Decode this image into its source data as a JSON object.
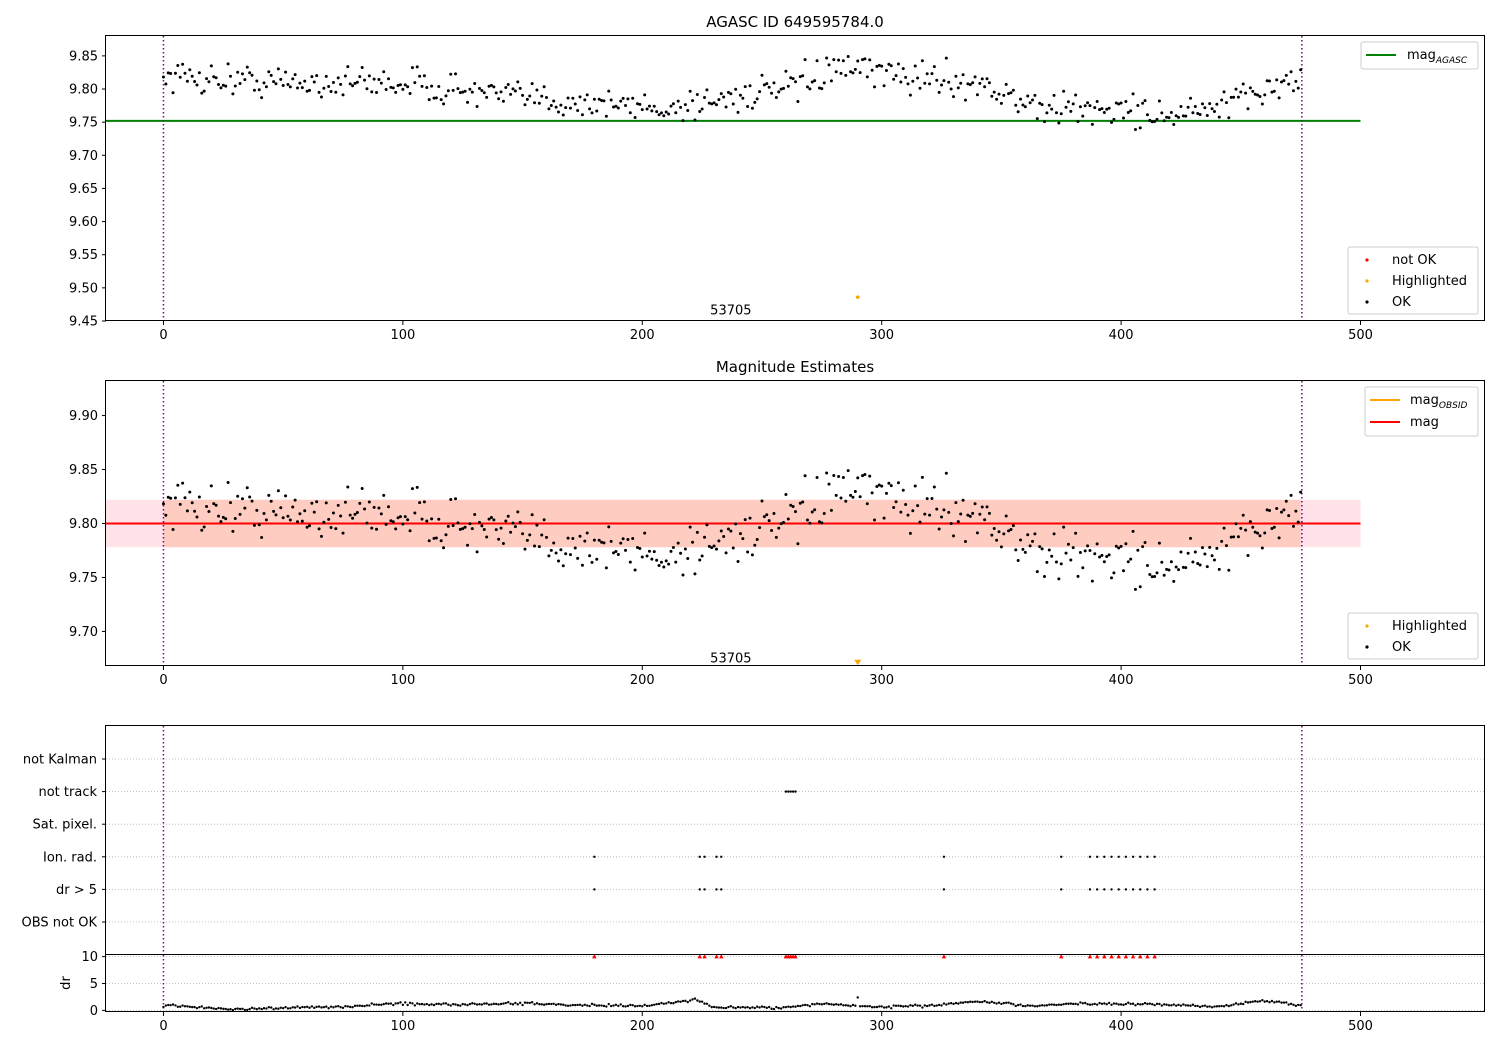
{
  "colors": {
    "ok": "#000000",
    "not_ok": "#ff0000",
    "highlighted": "#ffa500",
    "mag_agasc": "#008000",
    "mag_obsid": "#ffa500",
    "mag": "#ff0000",
    "band_outer": "#ffc0cb",
    "band_inner": "#ffa07a",
    "vline": "#800080",
    "grid": "#b0b0b0"
  },
  "chart_data": [
    {
      "type": "scatter",
      "title": "AGASC ID 649595784.0",
      "xlim": [
        -24,
        552
      ],
      "ylim": [
        9.45,
        9.88
      ],
      "xticks": [
        0,
        100,
        200,
        300,
        400,
        500
      ],
      "xtick_labels": [
        "0",
        "100",
        "200",
        "300",
        "400",
        "500"
      ],
      "yticks": [
        9.45,
        9.5,
        9.55,
        9.6,
        9.65,
        9.7,
        9.75,
        9.8,
        9.85
      ],
      "ytick_labels": [
        "9.45",
        "9.50",
        "9.55",
        "9.60",
        "9.65",
        "9.70",
        "9.75",
        "9.80",
        "9.85"
      ],
      "hlines": [
        {
          "name": "mag_AGASC",
          "y": 9.752,
          "x": [
            -24,
            500
          ],
          "color": "#008000"
        }
      ],
      "vlines": [
        0,
        475.5
      ],
      "highlighted_points": [
        {
          "x": 290,
          "y": 9.486
        }
      ],
      "obsid_annotation": {
        "text": "53705",
        "x": 237,
        "y": 9.466
      },
      "ok_series_description": "~476 black points, index 0-475",
      "ok_anchor_values": [
        [
          0,
          9.82
        ],
        [
          50,
          9.81
        ],
        [
          100,
          9.81
        ],
        [
          140,
          9.79
        ],
        [
          175,
          9.78
        ],
        [
          210,
          9.77
        ],
        [
          240,
          9.79
        ],
        [
          262,
          9.8
        ],
        [
          280,
          9.83
        ],
        [
          310,
          9.82
        ],
        [
          340,
          9.81
        ],
        [
          365,
          9.77
        ],
        [
          395,
          9.77
        ],
        [
          425,
          9.76
        ],
        [
          450,
          9.78
        ],
        [
          465,
          9.81
        ],
        [
          475,
          9.81
        ]
      ],
      "legend": [
        {
          "label": "mag",
          "subscript": "AGASC",
          "kind": "line",
          "color": "#008000"
        }
      ],
      "legend2": [
        {
          "label": "not OK",
          "kind": "point",
          "color": "#ff0000"
        },
        {
          "label": "Highlighted",
          "kind": "point",
          "color": "#ffa500"
        },
        {
          "label": "OK",
          "kind": "point",
          "color": "#000000"
        }
      ]
    },
    {
      "type": "scatter",
      "title": "Magnitude Estimates",
      "xlim": [
        -24,
        552
      ],
      "ylim": [
        9.668,
        9.932
      ],
      "xticks": [
        0,
        100,
        200,
        300,
        400,
        500
      ],
      "xtick_labels": [
        "0",
        "100",
        "200",
        "300",
        "400",
        "500"
      ],
      "yticks": [
        9.7,
        9.75,
        9.8,
        9.85,
        9.9
      ],
      "ytick_labels": [
        "9.70",
        "9.75",
        "9.80",
        "9.85",
        "9.90"
      ],
      "hlines": [
        {
          "name": "mag",
          "y": 9.8,
          "x": [
            -24,
            500
          ],
          "color": "#ff0000"
        }
      ],
      "bands": [
        {
          "y": [
            9.778,
            9.822
          ],
          "x": [
            -24,
            500
          ],
          "color": "#ffc0cb"
        },
        {
          "y": [
            9.778,
            9.822
          ],
          "x": [
            0,
            475
          ],
          "color": "#ffa07a"
        }
      ],
      "vlines": [
        0,
        475.5
      ],
      "highlighted_points": [
        {
          "x": 290,
          "y": 9.671,
          "marker": "down-triangle"
        }
      ],
      "obsid_annotation": {
        "text": "53705",
        "x": 237,
        "y": 9.675
      },
      "legend": [
        {
          "label": "mag",
          "subscript": "OBSID",
          "kind": "line",
          "color": "#ffa500"
        },
        {
          "label": "mag",
          "subscript": "",
          "kind": "line",
          "color": "#ff0000"
        }
      ],
      "legend2": [
        {
          "label": "Highlighted",
          "kind": "point",
          "color": "#ffa500"
        },
        {
          "label": "OK",
          "kind": "point",
          "color": "#000000"
        }
      ]
    },
    {
      "type": "scatter",
      "title": "",
      "xlim": [
        -24,
        552
      ],
      "categories": [
        "not Kalman",
        "not track",
        "Sat. pixel.",
        "Ion. rad.",
        "dr > 5",
        "OBS not OK"
      ],
      "flags": {
        "not Kalman": [],
        "not track": [
          260,
          261,
          262,
          263,
          264
        ],
        "Sat. pixel.": [],
        "Ion. rad.": [
          180,
          224,
          226,
          231,
          233,
          326,
          375,
          387,
          390,
          393,
          396,
          399,
          402,
          405,
          408,
          411,
          414
        ],
        "dr > 5": [
          180,
          224,
          226,
          231,
          233,
          326,
          375,
          387,
          390,
          393,
          396,
          399,
          402,
          405,
          408,
          411,
          414
        ],
        "OBS not OK": []
      },
      "vlines": [
        0,
        475.5
      ]
    },
    {
      "type": "scatter",
      "title": "",
      "ylabel": "dr",
      "xlim": [
        -24,
        552
      ],
      "ylim": [
        -0.3,
        10.3
      ],
      "xticks": [
        0,
        100,
        200,
        300,
        400,
        500
      ],
      "xtick_labels": [
        "0",
        "100",
        "200",
        "300",
        "400",
        "500"
      ],
      "yticks": [
        0,
        5,
        10
      ],
      "ytick_labels": [
        "0",
        "5",
        "10"
      ],
      "dr_anchor_values": [
        [
          0,
          0.9
        ],
        [
          15,
          0.6
        ],
        [
          30,
          0.2
        ],
        [
          50,
          0.5
        ],
        [
          75,
          0.6
        ],
        [
          95,
          1.3
        ],
        [
          110,
          1.1
        ],
        [
          150,
          1.3
        ],
        [
          175,
          1.0
        ],
        [
          200,
          0.8
        ],
        [
          222,
          2.0
        ],
        [
          230,
          0.5
        ],
        [
          260,
          0.5
        ],
        [
          275,
          1.2
        ],
        [
          300,
          0.6
        ],
        [
          325,
          1.0
        ],
        [
          340,
          1.7
        ],
        [
          360,
          0.8
        ],
        [
          380,
          1.2
        ],
        [
          420,
          1.1
        ],
        [
          440,
          0.7
        ],
        [
          460,
          1.9
        ],
        [
          475,
          0.9
        ]
      ],
      "clipped_points_at_10": [
        180,
        224,
        226,
        231,
        233,
        260,
        261,
        262,
        263,
        264,
        326,
        375,
        387,
        390,
        393,
        396,
        399,
        402,
        405,
        408,
        411,
        414
      ],
      "vlines": [
        0,
        475.5
      ]
    }
  ]
}
